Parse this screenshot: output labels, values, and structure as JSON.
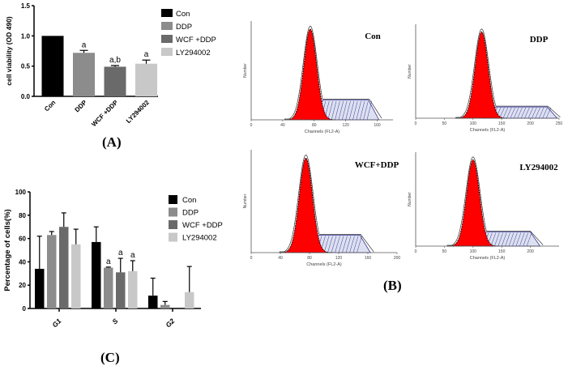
{
  "colors": {
    "Con": "#000000",
    "DDP": "#8c8c8c",
    "WCF +DDP": "#6a6a6a",
    "LY294002": "#c8c8c8",
    "g1fill": "#ff0000",
    "sfill": "#3a3a9a"
  },
  "panels": {
    "A": "(A)",
    "B": "(B)",
    "C": "(C)"
  },
  "chart_data": [
    {
      "type": "bar",
      "id": "A",
      "ylabel": "cell viability (OD 490)",
      "ylim": [
        0,
        1.5
      ],
      "yticks": [
        "0.0",
        "0.5",
        "1.0",
        "1.5"
      ],
      "categories": [
        "Con",
        "DDP",
        "WCF +DDP",
        "LY294002"
      ],
      "values": [
        1.0,
        0.72,
        0.49,
        0.54
      ],
      "errors": [
        0,
        0.04,
        0.02,
        0.06
      ],
      "annotations": [
        "",
        "a",
        "a,b",
        "a"
      ],
      "legend": [
        "Con",
        "DDP",
        "WCF +DDP",
        "LY294002"
      ],
      "legend_position": "right"
    },
    {
      "type": "bar",
      "id": "C",
      "ylabel": "Percentage of cells(%)",
      "ylim": [
        0,
        100
      ],
      "yticks": [
        "0",
        "20",
        "40",
        "60",
        "80",
        "100"
      ],
      "categories": [
        "G1",
        "S",
        "G2"
      ],
      "series": [
        {
          "name": "Con",
          "values": [
            34,
            57,
            11
          ],
          "errors": [
            28,
            13,
            15
          ],
          "annotations": [
            "",
            "",
            ""
          ]
        },
        {
          "name": "DDP",
          "values": [
            63,
            35,
            3
          ],
          "errors": [
            3,
            0.5,
            3
          ],
          "annotations": [
            "",
            "a",
            ""
          ]
        },
        {
          "name": "WCF +DDP",
          "values": [
            70,
            31,
            0
          ],
          "errors": [
            12,
            12,
            0
          ],
          "annotations": [
            "",
            "a",
            ""
          ]
        },
        {
          "name": "LY294002",
          "values": [
            55,
            32,
            14
          ],
          "errors": [
            13,
            9,
            22
          ],
          "annotations": [
            "",
            "a",
            ""
          ]
        }
      ],
      "legend_position": "top-right"
    },
    {
      "type": "area",
      "id": "B",
      "xlabel": "Channels (FL2-A)",
      "ylabel": "Number",
      "histograms": [
        {
          "title": "Con",
          "xticks": [
            "0",
            "40",
            "80",
            "120",
            "160"
          ],
          "xmax": 180,
          "g1_peak": 75,
          "s_level": 0.2
        },
        {
          "title": "DDP",
          "xticks": [
            "0",
            "50",
            "100",
            "150",
            "200",
            "250"
          ],
          "xmax": 250,
          "g1_peak": 115,
          "s_level": 0.12
        },
        {
          "title": "WCF+DDP",
          "xticks": [
            "0",
            "40",
            "80",
            "120",
            "160",
            "200"
          ],
          "xmax": 200,
          "g1_peak": 75,
          "s_level": 0.17
        },
        {
          "title": "LY294002",
          "xticks": [
            "0",
            "50",
            "100",
            "150",
            "200"
          ],
          "xmax": 250,
          "g1_peak": 100,
          "s_level": 0.15
        }
      ]
    }
  ]
}
